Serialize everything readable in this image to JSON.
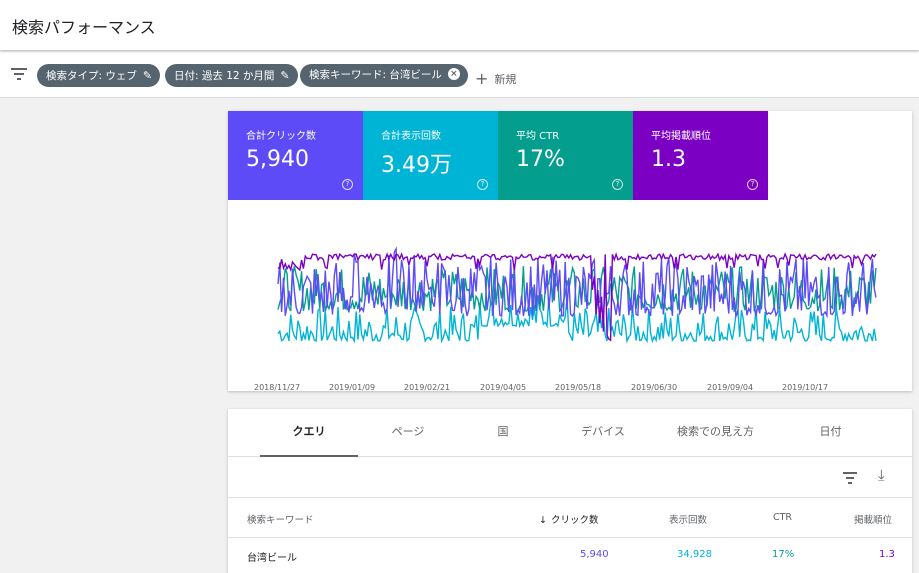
{
  "header": {
    "title": "検索パフォーマンス"
  },
  "filters": {
    "chips": [
      {
        "label": "検索タイプ: ウェブ",
        "icon": "pencil-icon"
      },
      {
        "label": "日付: 過去 12 か月間",
        "icon": "pencil-icon"
      },
      {
        "label": "検索キーワード: 台湾ビール",
        "icon": "close-circle-icon"
      }
    ],
    "new_label": "新規"
  },
  "metrics": [
    {
      "label": "合計クリック数",
      "value": "5,940",
      "color": "#5c4bf6"
    },
    {
      "label": "合計表示回数",
      "value": "3.49万",
      "color": "#00b4d6"
    },
    {
      "label": "平均 CTR",
      "value": "17%",
      "color": "#039e8d"
    },
    {
      "label": "平均掲載順位",
      "value": "1.3",
      "color": "#7b00c4"
    }
  ],
  "chart_data": {
    "type": "line",
    "x_tick_labels": [
      "2018/11/27",
      "2019/01/09",
      "2019/02/21",
      "2019/04/05",
      "2019/05/18",
      "2019/06/30",
      "2019/09/04",
      "2019/10/17"
    ],
    "series": [
      {
        "name": "合計クリック数",
        "color": "#5c4bf6"
      },
      {
        "name": "合計表示回数",
        "color": "#00b4d6"
      },
      {
        "name": "平均 CTR",
        "color": "#039e8d"
      },
      {
        "name": "平均掲載順位",
        "color": "#7b00c4"
      }
    ],
    "grid": false,
    "y_axis_labels": false
  },
  "tabs": [
    {
      "label": "クエリ",
      "active": true
    },
    {
      "label": "ページ"
    },
    {
      "label": "国"
    },
    {
      "label": "デバイス"
    },
    {
      "label": "検索での見え方"
    },
    {
      "label": "日付"
    }
  ],
  "table": {
    "columns": [
      "検索キーワード",
      "クリック数",
      "表示回数",
      "CTR",
      "掲載順位"
    ],
    "sort_indicator": "↓",
    "rows": [
      {
        "query": "台湾ビール",
        "clicks": "5,940",
        "impressions": "34,928",
        "ctr": "17%",
        "position": "1.3"
      }
    ]
  }
}
